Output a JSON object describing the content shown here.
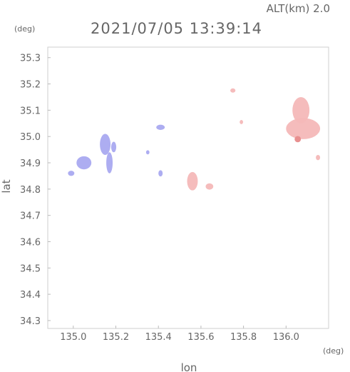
{
  "header": {
    "altitude": "ALT(km) 2.0",
    "datetime": "2021/07/05 13:39:14"
  },
  "chart_data": {
    "type": "heatmap",
    "title": "2021/07/05 13:39:14",
    "subtitle": "ALT(km) 2.0",
    "xlabel": "lon",
    "ylabel": "lat",
    "x_unit": "(deg)",
    "y_unit": "(deg)",
    "xlim": [
      134.88,
      136.2
    ],
    "ylim": [
      34.27,
      35.34
    ],
    "x_ticks": [
      "135.0",
      "135.2",
      "135.4",
      "135.6",
      "135.8",
      "136.0"
    ],
    "y_ticks": [
      "34.3",
      "34.4",
      "34.5",
      "34.6",
      "34.7",
      "34.8",
      "34.9",
      "35.0",
      "35.1",
      "35.2",
      "35.3"
    ],
    "grid": false,
    "colors": {
      "approaching": "#a9a9f0",
      "receding": "#f4b8b8",
      "receding_core": "#e89090"
    },
    "echo_regions": [
      {
        "sign": "approaching",
        "lon": 135.05,
        "lat": 34.9,
        "r_lon": 0.035,
        "r_lat": 0.025
      },
      {
        "sign": "approaching",
        "lon": 134.99,
        "lat": 34.86,
        "r_lon": 0.015,
        "r_lat": 0.01
      },
      {
        "sign": "approaching",
        "lon": 135.15,
        "lat": 34.97,
        "r_lon": 0.025,
        "r_lat": 0.04
      },
      {
        "sign": "approaching",
        "lon": 135.17,
        "lat": 34.9,
        "r_lon": 0.015,
        "r_lat": 0.04
      },
      {
        "sign": "approaching",
        "lon": 135.19,
        "lat": 34.96,
        "r_lon": 0.012,
        "r_lat": 0.02
      },
      {
        "sign": "approaching",
        "lon": 135.41,
        "lat": 35.035,
        "r_lon": 0.02,
        "r_lat": 0.01
      },
      {
        "sign": "approaching",
        "lon": 135.35,
        "lat": 34.94,
        "r_lon": 0.008,
        "r_lat": 0.008
      },
      {
        "sign": "approaching",
        "lon": 135.41,
        "lat": 34.86,
        "r_lon": 0.01,
        "r_lat": 0.012
      },
      {
        "sign": "receding",
        "lon": 135.56,
        "lat": 34.83,
        "r_lon": 0.025,
        "r_lat": 0.035
      },
      {
        "sign": "receding",
        "lon": 135.64,
        "lat": 34.81,
        "r_lon": 0.018,
        "r_lat": 0.012
      },
      {
        "sign": "receding",
        "lon": 135.75,
        "lat": 35.175,
        "r_lon": 0.012,
        "r_lat": 0.008
      },
      {
        "sign": "receding",
        "lon": 135.79,
        "lat": 35.055,
        "r_lon": 0.008,
        "r_lat": 0.008
      },
      {
        "sign": "receding",
        "lon": 136.08,
        "lat": 35.03,
        "r_lon": 0.08,
        "r_lat": 0.04
      },
      {
        "sign": "receding",
        "lon": 136.07,
        "lat": 35.1,
        "r_lon": 0.04,
        "r_lat": 0.05
      },
      {
        "sign": "receding",
        "lon": 136.15,
        "lat": 34.92,
        "r_lon": 0.01,
        "r_lat": 0.01
      }
    ]
  }
}
